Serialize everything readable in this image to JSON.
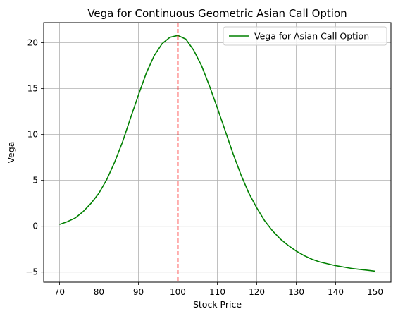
{
  "chart_data": {
    "type": "line",
    "title": "Vega for Continuous Geometric Asian Call Option",
    "xlabel": "Stock Price",
    "ylabel": "Vega",
    "xlim": [
      66,
      154
    ],
    "ylim": [
      -6.1,
      22.2
    ],
    "xticks": [
      70,
      80,
      90,
      100,
      110,
      120,
      130,
      140,
      150
    ],
    "yticks": [
      -5,
      0,
      5,
      10,
      15,
      20
    ],
    "grid": true,
    "legend_position": "top-right",
    "series": [
      {
        "name": "Vega for Asian Call Option",
        "color": "#008000",
        "x": [
          70,
          72,
          74,
          76,
          78,
          80,
          82,
          84,
          86,
          88,
          90,
          92,
          94,
          96,
          98,
          100,
          102,
          104,
          106,
          108,
          110,
          112,
          114,
          116,
          118,
          120,
          122,
          124,
          126,
          128,
          130,
          132,
          134,
          136,
          138,
          140,
          142,
          144,
          146,
          148,
          150
        ],
        "y": [
          0.2,
          0.5,
          0.9,
          1.6,
          2.5,
          3.6,
          5.1,
          7.0,
          9.2,
          11.8,
          14.3,
          16.7,
          18.6,
          19.9,
          20.6,
          20.8,
          20.4,
          19.2,
          17.5,
          15.3,
          12.9,
          10.4,
          7.9,
          5.6,
          3.6,
          2.0,
          0.6,
          -0.5,
          -1.4,
          -2.1,
          -2.7,
          -3.2,
          -3.6,
          -3.9,
          -4.1,
          -4.3,
          -4.45,
          -4.6,
          -4.7,
          -4.8,
          -4.9
        ]
      }
    ],
    "vline": {
      "x": 100,
      "color": "#ff0000",
      "style": "dashed"
    }
  }
}
